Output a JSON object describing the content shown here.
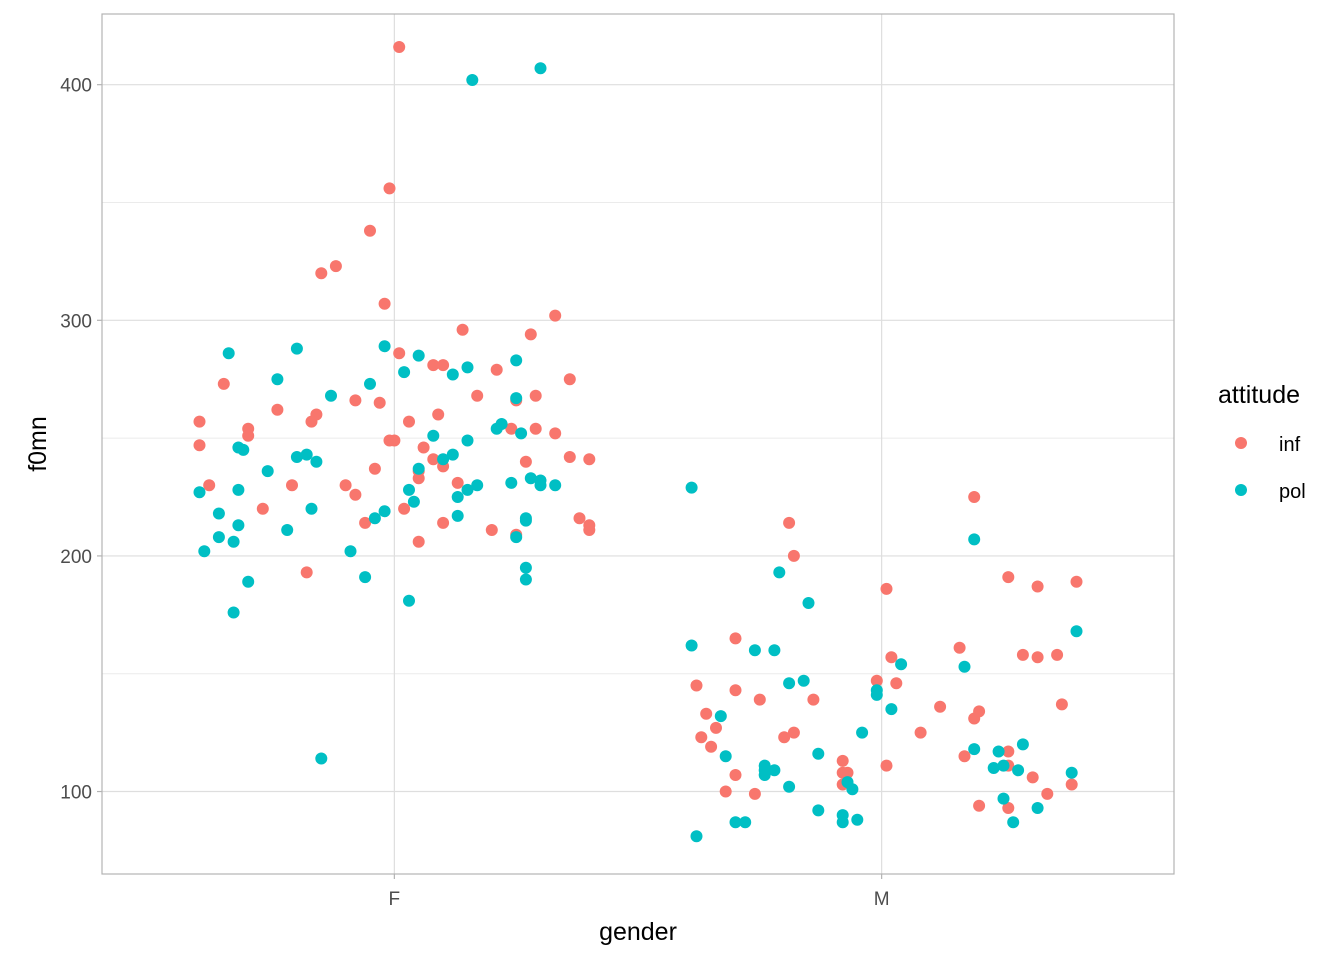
{
  "colors": {
    "inf": "#f8766d",
    "pol": "#00bfc4"
  },
  "chart_data": {
    "type": "scatter",
    "title": "",
    "xlabel": "gender",
    "ylabel": "f0mn",
    "categories": [
      "F",
      "M"
    ],
    "ylim": [
      65,
      430
    ],
    "yticks": [
      100,
      200,
      300,
      400
    ],
    "ytick_labels": [
      "100",
      "200",
      "300",
      "400"
    ],
    "grid": true,
    "legend": {
      "title": "attitude",
      "position": "right",
      "entries": [
        "inf",
        "pol"
      ]
    },
    "series": [
      {
        "name": "inf",
        "color": "#f8766d",
        "points": [
          [
            "F",
            0.01,
            416
          ],
          [
            "F",
            -0.01,
            356
          ],
          [
            "F",
            -0.05,
            338
          ],
          [
            "F",
            -0.12,
            323
          ],
          [
            "F",
            -0.15,
            320
          ],
          [
            "F",
            -0.02,
            307
          ],
          [
            "F",
            0.33,
            302
          ],
          [
            "F",
            0.14,
            296
          ],
          [
            "F",
            0.28,
            294
          ],
          [
            "F",
            0.01,
            286
          ],
          [
            "F",
            0.08,
            281
          ],
          [
            "F",
            0.1,
            281
          ],
          [
            "F",
            0.21,
            279
          ],
          [
            "F",
            0.36,
            275
          ],
          [
            "F",
            -0.35,
            273
          ],
          [
            "F",
            0.17,
            268
          ],
          [
            "F",
            0.29,
            268
          ],
          [
            "F",
            0.25,
            266
          ],
          [
            "F",
            -0.08,
            266
          ],
          [
            "F",
            -0.03,
            265
          ],
          [
            "F",
            -0.24,
            262
          ],
          [
            "F",
            -0.16,
            260
          ],
          [
            "F",
            0.09,
            260
          ],
          [
            "F",
            -0.17,
            257
          ],
          [
            "F",
            -0.4,
            257
          ],
          [
            "F",
            0.03,
            257
          ],
          [
            "F",
            0.24,
            254
          ],
          [
            "F",
            0.29,
            254
          ],
          [
            "F",
            -0.3,
            254
          ],
          [
            "F",
            0.33,
            252
          ],
          [
            "F",
            -0.3,
            251
          ],
          [
            "F",
            -0.01,
            249
          ],
          [
            "F",
            0,
            249
          ],
          [
            "F",
            -0.4,
            247
          ],
          [
            "F",
            0.06,
            246
          ],
          [
            "F",
            0.36,
            242
          ],
          [
            "F",
            0.4,
            241
          ],
          [
            "F",
            0.08,
            241
          ],
          [
            "F",
            0.27,
            240
          ],
          [
            "F",
            0.1,
            238
          ],
          [
            "F",
            -0.04,
            237
          ],
          [
            "F",
            0.05,
            236
          ],
          [
            "F",
            0.13,
            231
          ],
          [
            "F",
            0.05,
            233
          ],
          [
            "F",
            -0.38,
            230
          ],
          [
            "F",
            -0.21,
            230
          ],
          [
            "F",
            -0.1,
            230
          ],
          [
            "F",
            -0.08,
            226
          ],
          [
            "F",
            0.02,
            220
          ],
          [
            "F",
            -0.27,
            220
          ],
          [
            "F",
            -0.06,
            214
          ],
          [
            "F",
            0.1,
            214
          ],
          [
            "F",
            0.38,
            216
          ],
          [
            "F",
            0.4,
            213
          ],
          [
            "F",
            0.4,
            211
          ],
          [
            "F",
            0.2,
            211
          ],
          [
            "F",
            0.25,
            209
          ],
          [
            "F",
            0.05,
            206
          ],
          [
            "F",
            -0.18,
            193
          ],
          [
            "M",
            0.01,
            186
          ],
          [
            "M",
            -0.19,
            214
          ],
          [
            "M",
            -0.18,
            200
          ],
          [
            "M",
            0.19,
            225
          ],
          [
            "M",
            0.26,
            191
          ],
          [
            "M",
            0.32,
            187
          ],
          [
            "M",
            0.4,
            189
          ],
          [
            "M",
            -0.3,
            165
          ],
          [
            "M",
            0.16,
            161
          ],
          [
            "M",
            0.29,
            158
          ],
          [
            "M",
            0.32,
            157
          ],
          [
            "M",
            0.36,
            158
          ],
          [
            "M",
            0.02,
            157
          ],
          [
            "M",
            0.03,
            146
          ],
          [
            "M",
            -0.01,
            147
          ],
          [
            "M",
            -0.38,
            145
          ],
          [
            "M",
            -0.3,
            143
          ],
          [
            "M",
            -0.25,
            139
          ],
          [
            "M",
            -0.14,
            139
          ],
          [
            "M",
            0.12,
            136
          ],
          [
            "M",
            0.2,
            134
          ],
          [
            "M",
            0.19,
            131
          ],
          [
            "M",
            -0.36,
            133
          ],
          [
            "M",
            -0.34,
            127
          ],
          [
            "M",
            -0.18,
            125
          ],
          [
            "M",
            -0.2,
            123
          ],
          [
            "M",
            0.08,
            125
          ],
          [
            "M",
            -0.37,
            123
          ],
          [
            "M",
            -0.35,
            119
          ],
          [
            "M",
            0.26,
            117
          ],
          [
            "M",
            0.26,
            111
          ],
          [
            "M",
            -0.08,
            113
          ],
          [
            "M",
            0.17,
            115
          ],
          [
            "M",
            0.37,
            137
          ],
          [
            "M",
            -0.3,
            107
          ],
          [
            "M",
            -0.07,
            108
          ],
          [
            "M",
            -0.08,
            108
          ],
          [
            "M",
            0.31,
            106
          ],
          [
            "M",
            0.01,
            111
          ],
          [
            "M",
            -0.08,
            103
          ],
          [
            "M",
            0.34,
            99
          ],
          [
            "M",
            0.39,
            103
          ],
          [
            "M",
            -0.32,
            100
          ],
          [
            "M",
            -0.26,
            99
          ],
          [
            "M",
            0.2,
            94
          ],
          [
            "M",
            0.26,
            93
          ]
        ]
      },
      {
        "name": "pol",
        "color": "#00bfc4",
        "points": [
          [
            "F",
            0.16,
            402
          ],
          [
            "F",
            0.3,
            407
          ],
          [
            "F",
            -0.02,
            289
          ],
          [
            "F",
            -0.2,
            288
          ],
          [
            "F",
            -0.34,
            286
          ],
          [
            "F",
            0.05,
            285
          ],
          [
            "F",
            0.25,
            283
          ],
          [
            "F",
            0.02,
            278
          ],
          [
            "F",
            0.15,
            280
          ],
          [
            "F",
            0.12,
            277
          ],
          [
            "F",
            -0.24,
            275
          ],
          [
            "F",
            -0.05,
            273
          ],
          [
            "F",
            -0.13,
            268
          ],
          [
            "F",
            0.25,
            267
          ],
          [
            "F",
            0.22,
            256
          ],
          [
            "F",
            0.21,
            254
          ],
          [
            "F",
            0.26,
            252
          ],
          [
            "F",
            0.08,
            251
          ],
          [
            "F",
            0.15,
            249
          ],
          [
            "F",
            -0.32,
            246
          ],
          [
            "F",
            -0.31,
            245
          ],
          [
            "F",
            -0.18,
            243
          ],
          [
            "F",
            0.12,
            243
          ],
          [
            "F",
            -0.2,
            242
          ],
          [
            "F",
            -0.16,
            240
          ],
          [
            "F",
            0.1,
            241
          ],
          [
            "F",
            0.05,
            237
          ],
          [
            "F",
            -0.26,
            236
          ],
          [
            "F",
            0.28,
            233
          ],
          [
            "F",
            0.3,
            232
          ],
          [
            "F",
            0.3,
            230
          ],
          [
            "F",
            0.33,
            230
          ],
          [
            "F",
            0.24,
            231
          ],
          [
            "F",
            0.17,
            230
          ],
          [
            "F",
            0.15,
            228
          ],
          [
            "F",
            0.13,
            225
          ],
          [
            "F",
            -0.4,
            227
          ],
          [
            "F",
            -0.32,
            228
          ],
          [
            "F",
            0.03,
            228
          ],
          [
            "F",
            0.04,
            223
          ],
          [
            "F",
            -0.17,
            220
          ],
          [
            "F",
            -0.36,
            218
          ],
          [
            "F",
            -0.02,
            219
          ],
          [
            "F",
            -0.04,
            216
          ],
          [
            "F",
            0.13,
            217
          ],
          [
            "F",
            0.27,
            216
          ],
          [
            "F",
            0.27,
            215
          ],
          [
            "F",
            -0.32,
            213
          ],
          [
            "F",
            -0.22,
            211
          ],
          [
            "F",
            0.25,
            208
          ],
          [
            "F",
            -0.36,
            208
          ],
          [
            "F",
            -0.33,
            206
          ],
          [
            "F",
            -0.39,
            202
          ],
          [
            "F",
            -0.09,
            202
          ],
          [
            "F",
            -0.06,
            191
          ],
          [
            "F",
            0.27,
            195
          ],
          [
            "F",
            0.27,
            190
          ],
          [
            "F",
            -0.3,
            189
          ],
          [
            "F",
            0.03,
            181
          ],
          [
            "F",
            -0.33,
            176
          ],
          [
            "F",
            -0.15,
            114
          ],
          [
            "M",
            -0.39,
            229
          ],
          [
            "M",
            0.19,
            207
          ],
          [
            "M",
            -0.21,
            193
          ],
          [
            "M",
            -0.15,
            180
          ],
          [
            "M",
            0.4,
            168
          ],
          [
            "M",
            -0.39,
            162
          ],
          [
            "M",
            -0.22,
            160
          ],
          [
            "M",
            -0.26,
            160
          ],
          [
            "M",
            0.17,
            153
          ],
          [
            "M",
            0.04,
            154
          ],
          [
            "M",
            -0.16,
            147
          ],
          [
            "M",
            -0.19,
            146
          ],
          [
            "M",
            -0.01,
            143
          ],
          [
            "M",
            -0.01,
            141
          ],
          [
            "M",
            0.02,
            135
          ],
          [
            "M",
            -0.04,
            125
          ],
          [
            "M",
            -0.33,
            132
          ],
          [
            "M",
            0.19,
            118
          ],
          [
            "M",
            0.29,
            120
          ],
          [
            "M",
            -0.13,
            116
          ],
          [
            "M",
            -0.32,
            115
          ],
          [
            "M",
            0.24,
            117
          ],
          [
            "M",
            0.25,
            111
          ],
          [
            "M",
            0.23,
            110
          ],
          [
            "M",
            0.28,
            109
          ],
          [
            "M",
            -0.24,
            111
          ],
          [
            "M",
            -0.22,
            109
          ],
          [
            "M",
            -0.24,
            109
          ],
          [
            "M",
            0.39,
            108
          ],
          [
            "M",
            -0.24,
            107
          ],
          [
            "M",
            -0.19,
            102
          ],
          [
            "M",
            -0.07,
            104
          ],
          [
            "M",
            -0.06,
            101
          ],
          [
            "M",
            0.25,
            97
          ],
          [
            "M",
            -0.13,
            92
          ],
          [
            "M",
            0.32,
            93
          ],
          [
            "M",
            -0.08,
            90
          ],
          [
            "M",
            -0.08,
            87
          ],
          [
            "M",
            -0.05,
            88
          ],
          [
            "M",
            0.27,
            87
          ],
          [
            "M",
            -0.38,
            81
          ],
          [
            "M",
            -0.3,
            87
          ],
          [
            "M",
            -0.28,
            87
          ]
        ]
      }
    ]
  }
}
